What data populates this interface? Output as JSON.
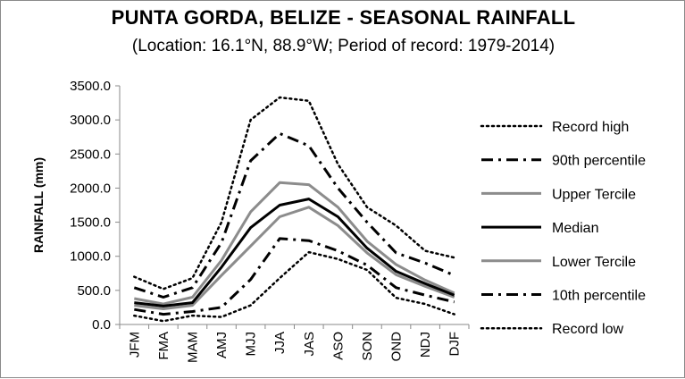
{
  "chart_data": {
    "type": "line",
    "title": "PUNTA GORDA, BELIZE - SEASONAL RAINFALL",
    "subtitle": "(Location: 16.1°N, 88.9°W; Period of record: 1979-2014)",
    "xlabel": "",
    "ylabel": "RAINFALL (mm)",
    "ylim": [
      0,
      3500
    ],
    "yticks": [
      "0.0",
      "500.0",
      "1000.0",
      "1500.0",
      "2000.0",
      "2500.0",
      "3000.0",
      "3500.0"
    ],
    "categories": [
      "JFM",
      "FMA",
      "MAM",
      "AMJ",
      "MJJ",
      "JJA",
      "JAS",
      "ASO",
      "SON",
      "OND",
      "NDJ",
      "DJF"
    ],
    "legend_position": "right",
    "grid": "none",
    "series": [
      {
        "name": "Record high",
        "style": "dotted",
        "color": "#000000",
        "values": [
          700,
          520,
          680,
          1500,
          3000,
          3330,
          3280,
          2350,
          1720,
          1450,
          1080,
          980
        ]
      },
      {
        "name": "90th percentile",
        "style": "dashdot",
        "color": "#000000",
        "values": [
          540,
          400,
          540,
          1200,
          2400,
          2800,
          2620,
          2000,
          1500,
          1050,
          900,
          720
        ]
      },
      {
        "name": "Upper Tercile",
        "style": "solid",
        "color": "#8c8c8c",
        "values": [
          380,
          300,
          400,
          940,
          1650,
          2080,
          2050,
          1720,
          1220,
          880,
          650,
          460
        ]
      },
      {
        "name": "Median",
        "style": "solid",
        "color": "#000000",
        "values": [
          320,
          270,
          320,
          840,
          1420,
          1750,
          1840,
          1580,
          1120,
          780,
          600,
          430
        ]
      },
      {
        "name": "Lower Tercile",
        "style": "solid",
        "color": "#8c8c8c",
        "values": [
          280,
          230,
          280,
          720,
          1150,
          1580,
          1720,
          1450,
          1050,
          730,
          560,
          400
        ]
      },
      {
        "name": "10th percentile",
        "style": "dashdot",
        "color": "#000000",
        "values": [
          220,
          150,
          190,
          250,
          660,
          1260,
          1230,
          1080,
          870,
          540,
          430,
          330
        ]
      },
      {
        "name": "Record low",
        "style": "dotted",
        "color": "#000000",
        "values": [
          130,
          50,
          130,
          110,
          280,
          680,
          1060,
          960,
          800,
          390,
          300,
          150
        ]
      }
    ]
  }
}
